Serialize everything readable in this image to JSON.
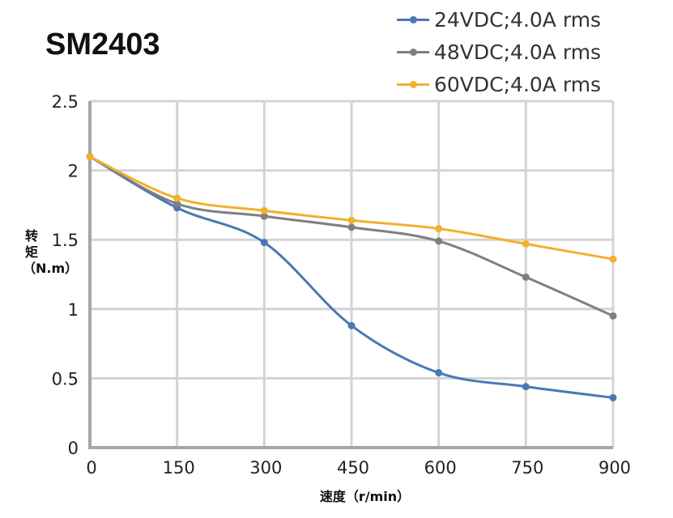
{
  "chart_data": {
    "type": "line",
    "title": "SM2403",
    "xlabel": "速度（r/min）",
    "ylabel": "转矩（N.m）",
    "x": [
      0,
      150,
      300,
      450,
      600,
      750,
      900
    ],
    "xlim": [
      0,
      900
    ],
    "ylim": [
      0,
      2.5
    ],
    "xticks": [
      "0",
      "150",
      "300",
      "450",
      "600",
      "750",
      "900"
    ],
    "yticks": [
      "0",
      "0.5",
      "1",
      "1.5",
      "2",
      "2.5"
    ],
    "grid": true,
    "legend": "top-right",
    "smooth": true,
    "series": [
      {
        "name": "24VDC;4.0A rms",
        "color": "#4a78b5",
        "values": [
          2.1,
          1.73,
          1.48,
          0.88,
          0.54,
          0.44,
          0.36
        ]
      },
      {
        "name": "48VDC;4.0A rms",
        "color": "#7f7f7f",
        "values": [
          2.1,
          1.76,
          1.67,
          1.59,
          1.49,
          1.23,
          0.95
        ]
      },
      {
        "name": "60VDC;4.0A rms",
        "color": "#f2b02f",
        "values": [
          2.1,
          1.8,
          1.71,
          1.64,
          1.58,
          1.47,
          1.36
        ]
      }
    ]
  }
}
